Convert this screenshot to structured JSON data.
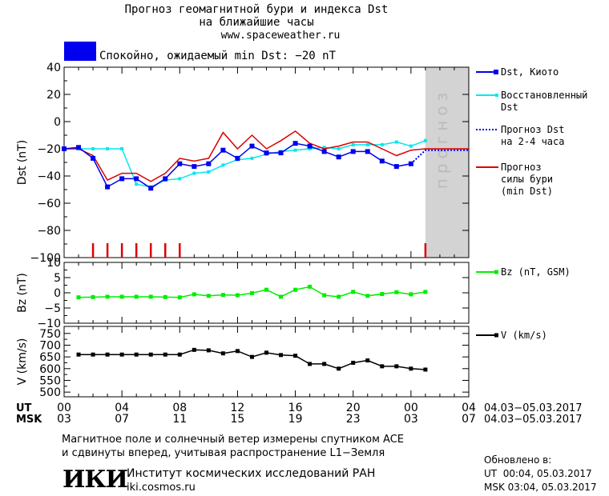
{
  "header": {
    "title_line1": "Прогноз геомагнитной бури и индекса Dst",
    "title_line2": "на ближайшие часы",
    "site": "www.spaceweather.ru",
    "status_text": "Спокойно, ожидаемый min Dst: −20 nT",
    "status_color": "#0000ee"
  },
  "colors": {
    "dst_kyoto": "#0000ee",
    "dst_restored": "#00e8ee",
    "forecast_dst": "#0000ee",
    "storm_forecast": "#dd0000",
    "bz": "#00ee00",
    "speed": "#000000",
    "forecast_shade": "#d3d3d3"
  },
  "legend": {
    "dst_kyoto": "Dst, Киото",
    "dst_restored": "Восстановленный\nDst",
    "forecast_dst": "Прогноз Dst\nна 2-4 часа",
    "storm": "Прогноз\nсилы бури\n(min Dst)",
    "bz": "Bz (nT, GSM)",
    "speed": "V (km/s)"
  },
  "forecast_label": "прогноз",
  "footer": {
    "note_line1": "Магнитное поле и солнечный ветер измерены спутником ACE",
    "note_line2": "и сдвинуты вперед, учитывая распространение L1−Земля",
    "institute": "Институт космических исследований РАН",
    "institute_url": "iki.cosmos.ru",
    "logo_text": "ИКИ",
    "updated_label": "Обновлено в:",
    "updated_ut": "UT  00:04, 05.03.2017",
    "updated_msk": "MSK 03:04, 05.03.2017"
  },
  "chart_data": [
    {
      "type": "line",
      "name": "dst",
      "ylabel": "Dst (nT)",
      "ylim": [
        -100,
        40
      ],
      "yticks": [
        40,
        20,
        0,
        -20,
        -40,
        -60,
        -80,
        -100
      ],
      "xlim": [
        0,
        28
      ],
      "forecast_region": [
        25,
        28
      ],
      "series": [
        {
          "name": "Dst, Киото",
          "x": [
            0,
            1,
            2,
            3,
            4,
            5,
            6,
            7,
            8,
            9,
            10,
            11,
            12,
            13,
            14,
            15,
            16,
            17,
            18,
            19,
            20,
            21,
            22,
            23,
            24
          ],
          "values": [
            -20,
            -19,
            -27,
            -48,
            -42,
            -42,
            -49,
            -42,
            -31,
            -33,
            -31,
            -21,
            -27,
            -18,
            -23,
            -23,
            -16,
            -18,
            -22,
            -26,
            -22,
            -22,
            -29,
            -33,
            -31
          ]
        },
        {
          "name": "Восстановленный Dst",
          "x": [
            0,
            1,
            2,
            3,
            4,
            5,
            6,
            7,
            8,
            9,
            10,
            11,
            12,
            13,
            14,
            15,
            16,
            17,
            18,
            19,
            20,
            21,
            22,
            23,
            24,
            25
          ],
          "values": [
            -20,
            -20,
            -20,
            -20,
            -20,
            -46,
            -48,
            -43,
            -42,
            -38,
            -37,
            -32,
            -28,
            -27,
            -24,
            -22,
            -21,
            -20,
            -19,
            -20,
            -17,
            -17,
            -17,
            -15,
            -18,
            -14
          ]
        },
        {
          "name": "Прогноз Dst",
          "x": [
            24,
            25,
            26,
            27,
            28
          ],
          "values": [
            -31,
            -21,
            -21,
            -21,
            -21
          ]
        },
        {
          "name": "Прогноз силы бури (min Dst)",
          "x": [
            0,
            1,
            2,
            3,
            4,
            5,
            6,
            7,
            8,
            9,
            10,
            11,
            12,
            13,
            14,
            15,
            16,
            17,
            18,
            19,
            20,
            21,
            22,
            23,
            24,
            25,
            26,
            27,
            28
          ],
          "values": [
            -20,
            -20,
            -25,
            -43,
            -38,
            -38,
            -44,
            -38,
            -27,
            -29,
            -27,
            -8,
            -20,
            -10,
            -20,
            -14,
            -7,
            -16,
            -20,
            -18,
            -15,
            -15,
            -20,
            -25,
            -21,
            -20,
            -20,
            -20,
            -20
          ]
        }
      ],
      "storm_ticks_x": [
        2,
        3,
        4,
        5,
        6,
        7,
        8,
        25
      ]
    },
    {
      "type": "line",
      "name": "bz",
      "ylabel": "Bz (nT)",
      "ylim": [
        -10,
        10
      ],
      "yticks": [
        10,
        5,
        0,
        -5,
        -10
      ],
      "xlim": [
        0,
        28
      ],
      "series": [
        {
          "name": "Bz (nT, GSM)",
          "x": [
            1,
            2,
            3,
            4,
            5,
            6,
            7,
            8,
            9,
            10,
            11,
            12,
            13,
            14,
            15,
            16,
            17,
            18,
            19,
            20,
            21,
            22,
            23,
            24,
            25
          ],
          "values": [
            -1.5,
            -1.4,
            -1.3,
            -1.3,
            -1.3,
            -1.3,
            -1.4,
            -1.5,
            -0.5,
            -1.0,
            -0.7,
            -0.8,
            -0.1,
            1.0,
            -1.3,
            1.0,
            2.0,
            -0.8,
            -1.3,
            0.3,
            -1.0,
            -0.4,
            0.2,
            -0.5,
            0.3
          ]
        }
      ]
    },
    {
      "type": "line",
      "name": "speed",
      "ylabel": "V (km/s)",
      "ylim": [
        480,
        780
      ],
      "yticks": [
        750,
        700,
        650,
        600,
        550,
        500
      ],
      "xlim": [
        0,
        28
      ],
      "series": [
        {
          "name": "V (km/s)",
          "x": [
            1,
            2,
            3,
            4,
            5,
            6,
            7,
            8,
            9,
            10,
            11,
            12,
            13,
            14,
            15,
            16,
            17,
            18,
            19,
            20,
            21,
            22,
            23,
            24,
            25
          ],
          "values": [
            660,
            660,
            660,
            660,
            660,
            660,
            660,
            660,
            680,
            678,
            665,
            675,
            650,
            668,
            658,
            655,
            620,
            620,
            600,
            625,
            635,
            610,
            610,
            600,
            596
          ]
        }
      ]
    }
  ],
  "x_axis": {
    "ut_label": "UT",
    "msk_label": "MSK",
    "ut_ticks": [
      "00",
      "04",
      "08",
      "12",
      "16",
      "20",
      "00",
      "04"
    ],
    "msk_ticks": [
      "03",
      "07",
      "11",
      "15",
      "19",
      "23",
      "03",
      "07"
    ],
    "ut_range": "04.03−05.03.2017",
    "msk_range": "04.03−05.03.2017"
  }
}
